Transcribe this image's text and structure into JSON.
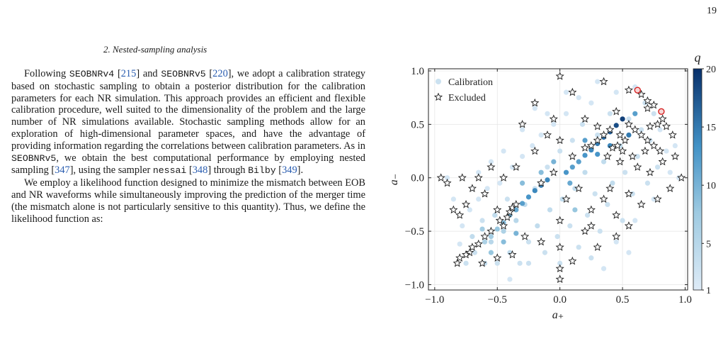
{
  "page": {
    "number": "19"
  },
  "section": {
    "heading": "2.   Nested-sampling analysis"
  },
  "paragraph1": {
    "p1": "Following ",
    "c1": "SEOBNRv4",
    "p2": " [",
    "r1": "215",
    "p3": "] and ",
    "c2": "SEOBNRv5",
    "p4": " [",
    "r2": "220",
    "p5": "], we adopt a calibration strategy based on stochastic sampling to obtain a posterior distribution for the calibration parameters for each NR simulation. This approach provides an efficient and flexible calibration procedure, well suited to the dimensionality of the problem and the large number of NR simulations available. Stochastic sampling methods allow for an exploration of high-dimensional parameter spaces, and have the advantage of providing information regarding the correlations between calibration parameters. As in ",
    "c3": "SEOBNRv5",
    "p6": ", we obtain the best computational performance by employing nested sampling [",
    "r3": "347",
    "p7": "], using the sampler ",
    "c4": "nessai",
    "p8": " [",
    "r4": "348",
    "p9": "] through ",
    "c5": "Bilby",
    "p10": " [",
    "r5": "349",
    "p11": "]."
  },
  "paragraph2": {
    "text": "We employ a likelihood function designed to minimize the mismatch between EOB and NR waveforms while simultaneously improving the prediction of the merger time (the mismatch alone is not particularly sensitive to this quantity). Thus, we define the likelihood function as:"
  },
  "colors": {
    "star_fill": "#ffffff",
    "star_stroke": "#1c1c1c",
    "highlight": "#d62020",
    "cite": "#2a5db0"
  },
  "chart_data": {
    "type": "scatter",
    "xlabel": "a₊",
    "ylabel": "a₋",
    "xlim": [
      -1.05,
      1.02
    ],
    "ylim": [
      -1.05,
      1.02
    ],
    "xticks": [
      -1.0,
      -0.5,
      0.0,
      0.5,
      1.0
    ],
    "yticks": [
      -1.0,
      -0.5,
      0.0,
      0.5,
      1.0
    ],
    "xtick_labels": [
      "−1.0",
      "−0.5",
      "0.0",
      "0.5",
      "1.0"
    ],
    "ytick_labels": [
      "−1.0",
      "−0.5",
      "0.0",
      "0.5",
      "1.0"
    ],
    "grid": true,
    "legend": {
      "placement": "top-left",
      "entries": [
        "Calibration",
        "Excluded"
      ]
    },
    "colorbar": {
      "label": "q",
      "min": 1,
      "max": 20,
      "ticks": [
        1,
        5,
        10,
        15,
        20
      ]
    },
    "series": [
      {
        "name": "Calibration",
        "points": [
          [
            -0.8,
            -0.62,
            2
          ],
          [
            -0.78,
            -0.45,
            2
          ],
          [
            -0.75,
            -0.8,
            3
          ],
          [
            -0.72,
            -0.3,
            2
          ],
          [
            -0.7,
            -0.55,
            4
          ],
          [
            -0.68,
            -0.7,
            3
          ],
          [
            -0.65,
            -0.2,
            2
          ],
          [
            -0.62,
            -0.4,
            3
          ],
          [
            -0.6,
            -0.8,
            4
          ],
          [
            -0.58,
            -0.1,
            2
          ],
          [
            -0.55,
            -0.6,
            5
          ],
          [
            -0.52,
            -0.35,
            4
          ],
          [
            -0.5,
            -0.8,
            3
          ],
          [
            -0.48,
            -0.05,
            2
          ],
          [
            -0.45,
            -0.5,
            6
          ],
          [
            -0.42,
            -0.2,
            3
          ],
          [
            -0.4,
            -0.7,
            4
          ],
          [
            -0.38,
            0.1,
            2
          ],
          [
            -0.35,
            -0.4,
            5
          ],
          [
            -0.32,
            -0.8,
            3
          ],
          [
            -0.3,
            0.2,
            2
          ],
          [
            -0.28,
            -0.25,
            4
          ],
          [
            -0.25,
            -0.6,
            3
          ],
          [
            -0.22,
            0.3,
            2
          ],
          [
            -0.2,
            -0.1,
            3
          ],
          [
            -0.18,
            -0.45,
            4
          ],
          [
            -0.15,
            0.4,
            2
          ],
          [
            -0.12,
            -0.7,
            3
          ],
          [
            -0.1,
            0.1,
            3
          ],
          [
            -0.08,
            -0.3,
            4
          ],
          [
            -0.05,
            0.5,
            2
          ],
          [
            -0.02,
            -0.55,
            3
          ],
          [
            0.0,
            0.25,
            3
          ],
          [
            0.02,
            -0.2,
            4
          ],
          [
            0.05,
            0.6,
            2
          ],
          [
            0.08,
            -0.45,
            3
          ],
          [
            0.1,
            0.35,
            3
          ],
          [
            0.12,
            -0.1,
            4
          ],
          [
            0.15,
            -0.65,
            3
          ],
          [
            0.18,
            0.5,
            3
          ],
          [
            0.2,
            0.05,
            4
          ],
          [
            0.22,
            -0.35,
            3
          ],
          [
            0.25,
            0.7,
            2
          ],
          [
            0.28,
            -0.15,
            3
          ],
          [
            0.3,
            0.4,
            3
          ],
          [
            0.32,
            -0.5,
            3
          ],
          [
            0.35,
            0.15,
            4
          ],
          [
            0.38,
            -0.25,
            3
          ],
          [
            0.4,
            0.6,
            3
          ],
          [
            0.42,
            -0.05,
            4
          ],
          [
            0.45,
            0.8,
            2
          ],
          [
            0.48,
            0.3,
            4
          ],
          [
            0.5,
            -0.4,
            3
          ],
          [
            0.52,
            0.05,
            3
          ],
          [
            0.55,
            0.55,
            3
          ],
          [
            0.58,
            -0.15,
            3
          ],
          [
            0.6,
            0.85,
            2
          ],
          [
            0.62,
            0.2,
            3
          ],
          [
            0.65,
            0.45,
            3
          ],
          [
            0.68,
            0.7,
            3
          ],
          [
            0.7,
            -0.05,
            3
          ],
          [
            0.72,
            0.35,
            3
          ],
          [
            0.75,
            0.6,
            3
          ],
          [
            0.78,
            0.1,
            3
          ],
          [
            0.8,
            0.45,
            2
          ],
          [
            0.85,
            0.25,
            2
          ],
          [
            0.88,
            0.05,
            2
          ],
          [
            0.92,
            0.3,
            2
          ],
          [
            0.95,
            0.0,
            2
          ],
          [
            -0.9,
            0.0,
            2
          ],
          [
            -0.85,
            -0.2,
            2
          ],
          [
            -0.65,
            0.05,
            2
          ],
          [
            -0.45,
            0.25,
            2
          ],
          [
            -0.3,
            0.45,
            2
          ],
          [
            -0.1,
            0.6,
            2
          ],
          [
            0.05,
            0.8,
            2
          ],
          [
            0.3,
            0.9,
            2
          ],
          [
            -0.25,
            -0.8,
            3
          ],
          [
            0.0,
            -0.8,
            3
          ],
          [
            0.25,
            -0.75,
            3
          ],
          [
            0.45,
            -0.6,
            2
          ],
          [
            0.6,
            -0.4,
            2
          ],
          [
            0.75,
            -0.2,
            2
          ],
          [
            -0.7,
            -0.1,
            2
          ],
          [
            -0.55,
            0.15,
            2
          ],
          [
            -0.4,
            -0.95,
            2
          ],
          [
            -0.2,
            0.65,
            2
          ],
          [
            0.15,
            0.75,
            2
          ],
          [
            0.35,
            -0.85,
            2
          ],
          [
            0.55,
            -0.7,
            2
          ],
          [
            -0.6,
            -0.6,
            6
          ],
          [
            -0.55,
            -0.55,
            7
          ],
          [
            -0.5,
            -0.48,
            8
          ],
          [
            -0.45,
            -0.42,
            9
          ],
          [
            -0.4,
            -0.35,
            10
          ],
          [
            -0.35,
            -0.3,
            11
          ],
          [
            -0.3,
            -0.24,
            12
          ],
          [
            -0.25,
            -0.18,
            13
          ],
          [
            -0.2,
            -0.12,
            14
          ],
          [
            -0.15,
            -0.07,
            15
          ],
          [
            -0.1,
            -0.02,
            14
          ],
          [
            0.05,
            0.05,
            13
          ],
          [
            0.1,
            0.1,
            12
          ],
          [
            0.15,
            0.15,
            12
          ],
          [
            0.2,
            0.21,
            13
          ],
          [
            0.25,
            0.26,
            14
          ],
          [
            0.3,
            0.32,
            15
          ],
          [
            0.35,
            0.38,
            16
          ],
          [
            0.4,
            0.43,
            17
          ],
          [
            0.45,
            0.49,
            18
          ],
          [
            0.5,
            0.55,
            19
          ],
          [
            -0.55,
            -0.7,
            8
          ],
          [
            -0.45,
            -0.6,
            9
          ],
          [
            -0.35,
            -0.52,
            10
          ],
          [
            -0.62,
            -0.48,
            7
          ],
          [
            0.2,
            0.35,
            12
          ],
          [
            0.3,
            0.22,
            13
          ],
          [
            0.4,
            0.3,
            14
          ],
          [
            0.55,
            0.4,
            15
          ],
          [
            -0.15,
            0.05,
            9
          ],
          [
            0.08,
            -0.05,
            11
          ],
          [
            -0.05,
            0.15,
            10
          ],
          [
            0.12,
            -0.3,
            8
          ],
          [
            -0.3,
            -0.05,
            9
          ],
          [
            0.6,
            0.6,
            12
          ]
        ]
      },
      {
        "name": "Excluded",
        "points": [
          [
            0.0,
            0.95
          ],
          [
            0.35,
            0.9
          ],
          [
            0.55,
            0.82
          ],
          [
            0.65,
            0.78
          ],
          [
            0.7,
            0.72
          ],
          [
            0.75,
            0.68
          ],
          [
            0.1,
            0.8
          ],
          [
            -0.2,
            0.7
          ],
          [
            -0.05,
            0.55
          ],
          [
            0.2,
            0.55
          ],
          [
            -0.3,
            0.5
          ],
          [
            0.45,
            0.62
          ],
          [
            0.3,
            0.48
          ],
          [
            0.4,
            0.45
          ],
          [
            0.35,
            0.4
          ],
          [
            0.3,
            0.35
          ],
          [
            0.25,
            0.3
          ],
          [
            0.2,
            0.28
          ],
          [
            0.55,
            0.5
          ],
          [
            0.6,
            0.45
          ],
          [
            0.65,
            0.4
          ],
          [
            0.7,
            0.35
          ],
          [
            0.75,
            0.3
          ],
          [
            0.8,
            0.25
          ],
          [
            0.85,
            0.48
          ],
          [
            0.9,
            0.4
          ],
          [
            0.78,
            0.5
          ],
          [
            0.68,
            0.25
          ],
          [
            0.58,
            0.2
          ],
          [
            0.48,
            0.15
          ],
          [
            0.62,
            0.1
          ],
          [
            0.72,
            0.05
          ],
          [
            0.82,
            0.15
          ],
          [
            0.92,
            0.2
          ],
          [
            0.97,
            0.0
          ],
          [
            0.88,
            -0.1
          ],
          [
            0.78,
            -0.2
          ],
          [
            0.65,
            -0.25
          ],
          [
            0.55,
            -0.15
          ],
          [
            0.45,
            -0.35
          ],
          [
            0.35,
            -0.2
          ],
          [
            0.25,
            -0.3
          ],
          [
            0.15,
            -0.1
          ],
          [
            0.05,
            -0.2
          ],
          [
            0.0,
            -0.4
          ],
          [
            0.0,
            -0.65
          ],
          [
            0.0,
            -0.85
          ],
          [
            0.0,
            -0.95
          ],
          [
            0.2,
            -0.5
          ],
          [
            0.3,
            -0.65
          ],
          [
            0.45,
            -0.55
          ],
          [
            0.55,
            -0.45
          ],
          [
            0.1,
            0.2
          ],
          [
            0.0,
            0.35
          ],
          [
            -0.1,
            0.4
          ],
          [
            -0.2,
            0.25
          ],
          [
            -0.35,
            0.1
          ],
          [
            -0.45,
            0.0
          ],
          [
            -0.55,
            0.1
          ],
          [
            -0.65,
            0.0
          ],
          [
            -0.7,
            -0.1
          ],
          [
            -0.75,
            -0.25
          ],
          [
            -0.8,
            -0.35
          ],
          [
            -0.85,
            -0.3
          ],
          [
            -0.95,
            0.0
          ],
          [
            -0.9,
            -0.05
          ],
          [
            -0.78,
            0.0
          ],
          [
            -0.6,
            -0.15
          ],
          [
            -0.5,
            -0.3
          ],
          [
            -0.48,
            -0.4
          ],
          [
            -0.45,
            -0.45
          ],
          [
            -0.42,
            -0.37
          ],
          [
            -0.4,
            -0.32
          ],
          [
            -0.38,
            -0.28
          ],
          [
            -0.35,
            -0.25
          ],
          [
            -0.55,
            -0.5
          ],
          [
            -0.6,
            -0.55
          ],
          [
            -0.65,
            -0.62
          ],
          [
            -0.7,
            -0.65
          ],
          [
            -0.72,
            -0.7
          ],
          [
            -0.75,
            -0.72
          ],
          [
            -0.8,
            -0.75
          ],
          [
            -0.82,
            -0.8
          ],
          [
            -0.62,
            -0.8
          ],
          [
            -0.5,
            -0.75
          ],
          [
            -0.38,
            -0.72
          ],
          [
            -0.28,
            -0.55
          ],
          [
            -0.15,
            -0.6
          ],
          [
            0.1,
            -0.78
          ],
          [
            0.25,
            -0.45
          ],
          [
            0.4,
            -0.1
          ],
          [
            0.5,
            0.25
          ],
          [
            0.52,
            0.35
          ],
          [
            0.48,
            0.4
          ],
          [
            0.46,
            0.3
          ],
          [
            0.42,
            0.28
          ],
          [
            0.38,
            0.2
          ],
          [
            0.7,
            0.65
          ],
          [
            0.82,
            0.55
          ],
          [
            0.72,
            0.48
          ],
          [
            -0.15,
            -0.05
          ],
          [
            -0.05,
            0.05
          ]
        ]
      },
      {
        "name": "",
        "points": [
          [
            0.62,
            0.82
          ],
          [
            0.81,
            0.62
          ]
        ]
      }
    ]
  }
}
